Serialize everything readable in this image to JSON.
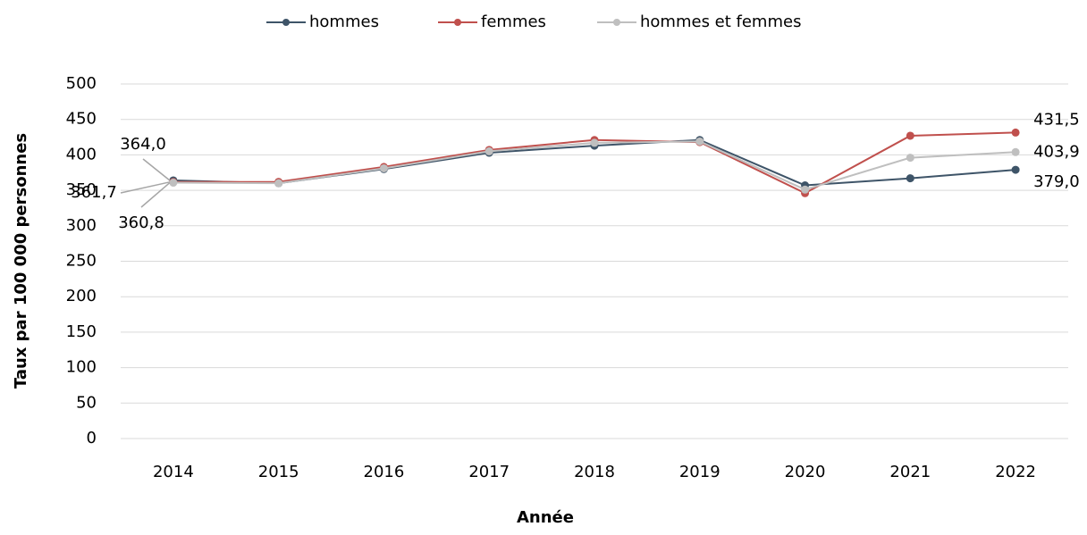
{
  "chart_data": {
    "type": "line",
    "x_label": "Année",
    "y_label": "Taux par 100 000 personnes",
    "categories": [
      "2014",
      "2015",
      "2016",
      "2017",
      "2018",
      "2019",
      "2020",
      "2021",
      "2022"
    ],
    "series": [
      {
        "name": "hommes",
        "color": "#3e5468",
        "values": [
          364.0,
          360,
          380,
          403,
          413,
          421,
          357,
          367,
          379.0
        ],
        "value_labels": [
          "364,0",
          null,
          null,
          null,
          null,
          null,
          null,
          null,
          "379,0"
        ]
      },
      {
        "name": "femmes",
        "color": "#c0504d",
        "values": [
          361.7,
          362,
          383,
          407,
          421,
          418,
          346,
          427,
          431.5
        ],
        "value_labels": [
          "361,7",
          null,
          null,
          null,
          null,
          null,
          null,
          null,
          "431,5"
        ]
      },
      {
        "name": "hommes et femmes",
        "color": "#bfbfbf",
        "values": [
          360.8,
          360,
          381,
          405,
          417,
          419,
          351,
          396,
          403.9
        ],
        "value_labels": [
          "360,8",
          null,
          null,
          null,
          null,
          null,
          null,
          null,
          "403,9"
        ]
      }
    ],
    "ylim": [
      0,
      500
    ],
    "yticks": [
      0,
      50,
      100,
      150,
      200,
      250,
      300,
      350,
      400,
      450,
      500
    ],
    "grid": true,
    "legend": "top"
  }
}
